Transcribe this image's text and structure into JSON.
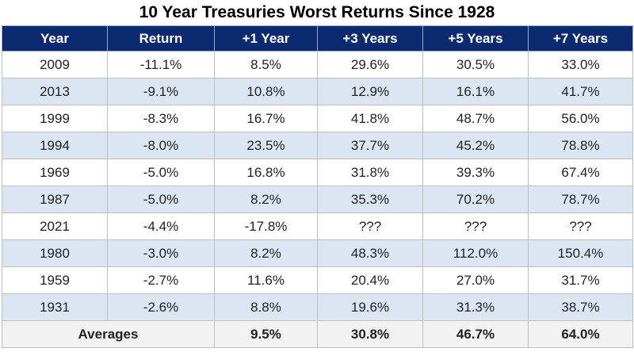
{
  "chart_data": {
    "type": "table",
    "title": "10 Year Treasuries Worst Returns Since 1928",
    "columns": [
      "Year",
      "Return",
      "+1 Year",
      "+3 Years",
      "+5 Years",
      "+7 Years"
    ],
    "rows": [
      [
        "2009",
        "-11.1%",
        "8.5%",
        "29.6%",
        "30.5%",
        "33.0%"
      ],
      [
        "2013",
        "-9.1%",
        "10.8%",
        "12.9%",
        "16.1%",
        "41.7%"
      ],
      [
        "1999",
        "-8.3%",
        "16.7%",
        "41.8%",
        "48.7%",
        "56.0%"
      ],
      [
        "1994",
        "-8.0%",
        "23.5%",
        "37.7%",
        "45.2%",
        "78.8%"
      ],
      [
        "1969",
        "-5.0%",
        "16.8%",
        "31.8%",
        "39.3%",
        "67.4%"
      ],
      [
        "1987",
        "-5.0%",
        "8.2%",
        "35.3%",
        "70.2%",
        "78.7%"
      ],
      [
        "2021",
        "-4.4%",
        "-17.8%",
        "???",
        "???",
        "???"
      ],
      [
        "1980",
        "-3.0%",
        "8.2%",
        "48.3%",
        "112.0%",
        "150.4%"
      ],
      [
        "1959",
        "-2.7%",
        "11.6%",
        "20.4%",
        "27.0%",
        "31.7%"
      ],
      [
        "1931",
        "-2.6%",
        "8.8%",
        "19.6%",
        "31.3%",
        "38.7%"
      ]
    ],
    "averages": {
      "label": "Averages",
      "values": [
        "9.5%",
        "30.8%",
        "46.7%",
        "64.0%"
      ]
    },
    "colors": {
      "header_bg": "#0b2a6f",
      "header_text": "#ffffff",
      "alt_row_bg": "#dce6f2",
      "footer_bg": "#f2f2f2"
    }
  }
}
